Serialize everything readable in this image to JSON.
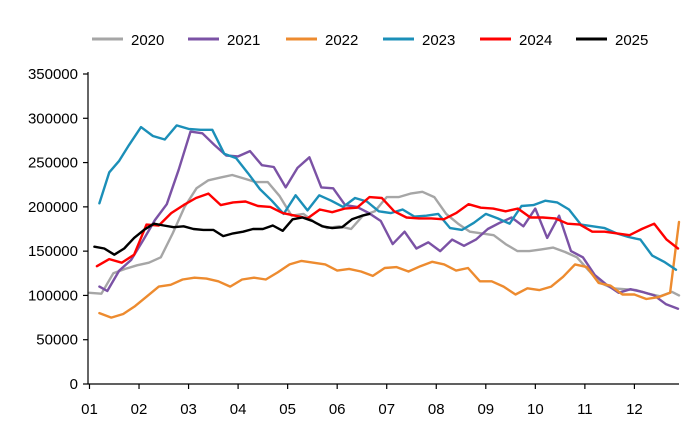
{
  "chart_data": {
    "type": "line",
    "title": "",
    "xlabel": "",
    "ylabel": "",
    "x_categories": [
      "01",
      "02",
      "03",
      "04",
      "05",
      "06",
      "07",
      "08",
      "09",
      "10",
      "11",
      "12"
    ],
    "x_range": [
      0.97,
      12.9
    ],
    "ylim": [
      0,
      350000
    ],
    "yticks": [
      0,
      50000,
      100000,
      150000,
      200000,
      250000,
      300000,
      350000
    ],
    "ytick_labels": [
      "0",
      "50000",
      "100000",
      "150000",
      "200000",
      "250000",
      "300000",
      "350000"
    ],
    "grid": false,
    "legend_position": "top",
    "series": [
      {
        "name": "2020",
        "color": "#a6a6a6",
        "x": [
          1.0,
          1.24,
          1.48,
          1.72,
          1.96,
          2.2,
          2.44,
          2.68,
          2.92,
          3.16,
          3.4,
          3.64,
          3.88,
          4.12,
          4.36,
          4.6,
          4.84,
          5.08,
          5.32,
          5.56,
          5.8,
          6.04,
          6.28,
          6.52,
          6.76,
          7.0,
          7.24,
          7.48,
          7.72,
          7.96,
          8.2,
          8.44,
          8.68,
          8.92,
          9.16,
          9.4,
          9.64,
          9.88,
          10.12,
          10.36,
          10.6,
          10.84,
          11.08,
          11.32,
          11.56,
          11.8,
          12.04,
          12.28,
          12.52,
          12.76,
          12.9
        ],
        "values": [
          103000,
          102000,
          125000,
          130000,
          134000,
          137000,
          143000,
          170000,
          200000,
          221000,
          230000,
          233000,
          236000,
          232000,
          228000,
          228000,
          212000,
          190000,
          192000,
          182000,
          176000,
          178000,
          175000,
          190000,
          195000,
          211000,
          211000,
          215000,
          217000,
          211000,
          192000,
          181000,
          172000,
          170000,
          168000,
          158000,
          150000,
          150000,
          152000,
          154000,
          149000,
          143000,
          128000,
          114000,
          108000,
          107000,
          106000,
          102000,
          99000,
          104000,
          100000
        ]
      },
      {
        "name": "2021",
        "color": "#7b52a5",
        "x": [
          1.2,
          1.36,
          1.6,
          1.84,
          2.08,
          2.32,
          2.56,
          2.8,
          3.04,
          3.28,
          3.52,
          3.76,
          4.0,
          4.24,
          4.48,
          4.72,
          4.96,
          5.2,
          5.44,
          5.68,
          5.92,
          6.16,
          6.4,
          6.64,
          6.88,
          7.12,
          7.36,
          7.6,
          7.84,
          8.08,
          8.32,
          8.56,
          8.8,
          9.04,
          9.28,
          9.52,
          9.76,
          10.0,
          10.24,
          10.48,
          10.72,
          10.96,
          11.2,
          11.44,
          11.68,
          11.92,
          12.16,
          12.4,
          12.64,
          12.88
        ],
        "values": [
          110000,
          105000,
          128000,
          140000,
          162000,
          185000,
          203000,
          242000,
          285000,
          283000,
          270000,
          258000,
          257000,
          263000,
          247000,
          245000,
          222000,
          244000,
          256000,
          222000,
          221000,
          202000,
          200000,
          193000,
          184000,
          158000,
          172000,
          153000,
          160000,
          150000,
          163000,
          156000,
          163000,
          175000,
          182000,
          188000,
          178000,
          198000,
          165000,
          190000,
          150000,
          143000,
          123000,
          112000,
          103000,
          107000,
          104000,
          100000,
          90000,
          85000
        ]
      },
      {
        "name": "2022",
        "color": "#ed8b2f",
        "x": [
          1.2,
          1.44,
          1.68,
          1.92,
          2.16,
          2.4,
          2.64,
          2.88,
          3.12,
          3.36,
          3.6,
          3.84,
          4.08,
          4.32,
          4.56,
          4.8,
          5.04,
          5.28,
          5.52,
          5.76,
          6.0,
          6.24,
          6.48,
          6.72,
          6.96,
          7.2,
          7.44,
          7.68,
          7.92,
          8.16,
          8.4,
          8.64,
          8.88,
          9.12,
          9.36,
          9.6,
          9.84,
          10.08,
          10.32,
          10.56,
          10.8,
          11.04,
          11.28,
          11.52,
          11.76,
          12.0,
          12.24,
          12.48,
          12.72,
          12.9
        ],
        "values": [
          80000,
          75000,
          79000,
          88000,
          99000,
          110000,
          112000,
          118000,
          120000,
          119000,
          116000,
          110000,
          118000,
          120000,
          118000,
          126000,
          135000,
          139000,
          137000,
          135000,
          128000,
          130000,
          127000,
          122000,
          131000,
          132000,
          127000,
          133000,
          138000,
          135000,
          128000,
          131000,
          116000,
          116000,
          110000,
          101000,
          108000,
          106000,
          110000,
          121000,
          135000,
          132000,
          114000,
          111000,
          101000,
          101000,
          96000,
          98000,
          103000,
          183000
        ]
      },
      {
        "name": "2023",
        "color": "#1b8fb8",
        "x": [
          1.2,
          1.4,
          1.6,
          1.8,
          2.04,
          2.28,
          2.52,
          2.76,
          3.0,
          3.24,
          3.48,
          3.72,
          3.96,
          4.2,
          4.44,
          4.68,
          4.92,
          5.16,
          5.4,
          5.64,
          5.88,
          6.12,
          6.36,
          6.6,
          6.84,
          7.08,
          7.32,
          7.56,
          7.8,
          8.04,
          8.28,
          8.52,
          8.76,
          9.0,
          9.24,
          9.48,
          9.72,
          9.96,
          10.2,
          10.44,
          10.68,
          10.92,
          11.16,
          11.4,
          11.64,
          11.88,
          12.12,
          12.36,
          12.6,
          12.84
        ],
        "values": [
          204000,
          239000,
          252000,
          270000,
          290000,
          280000,
          276000,
          292000,
          288000,
          287000,
          287000,
          260000,
          255000,
          238000,
          220000,
          207000,
          192000,
          213000,
          196000,
          213000,
          207000,
          200000,
          210000,
          206000,
          195000,
          193000,
          197000,
          189000,
          190000,
          192000,
          176000,
          174000,
          182000,
          192000,
          187000,
          181000,
          201000,
          202000,
          207000,
          205000,
          197000,
          180000,
          178000,
          176000,
          170000,
          166000,
          163000,
          145000,
          138000,
          129000
        ]
      },
      {
        "name": "2024",
        "color": "#ff0000",
        "x": [
          1.15,
          1.4,
          1.65,
          1.9,
          2.15,
          2.4,
          2.65,
          2.9,
          3.15,
          3.4,
          3.65,
          3.9,
          4.15,
          4.4,
          4.65,
          4.9,
          5.15,
          5.4,
          5.65,
          5.9,
          6.15,
          6.4,
          6.65,
          6.9,
          7.15,
          7.4,
          7.65,
          7.9,
          8.15,
          8.4,
          8.65,
          8.9,
          9.15,
          9.4,
          9.65,
          9.9,
          10.15,
          10.4,
          10.65,
          10.9,
          11.15,
          11.4,
          11.65,
          11.9,
          12.15,
          12.4,
          12.65,
          12.88
        ],
        "values": [
          133000,
          141000,
          137000,
          146000,
          180000,
          179000,
          193000,
          202000,
          210000,
          215000,
          202000,
          205000,
          206000,
          201000,
          200000,
          193000,
          190000,
          187000,
          197000,
          194000,
          198000,
          199000,
          211000,
          210000,
          195000,
          188000,
          187000,
          187000,
          186000,
          193000,
          203000,
          199000,
          198000,
          195000,
          198000,
          188000,
          188000,
          187000,
          181000,
          180000,
          172000,
          172000,
          170000,
          168000,
          175000,
          181000,
          163000,
          153000
        ]
      },
      {
        "name": "2025",
        "color": "#000000",
        "x": [
          1.1,
          1.3,
          1.5,
          1.7,
          1.9,
          2.1,
          2.3,
          2.5,
          2.7,
          2.9,
          3.1,
          3.3,
          3.5,
          3.7,
          3.9,
          4.1,
          4.3,
          4.5,
          4.7,
          4.9,
          5.1,
          5.3,
          5.5,
          5.7,
          5.9,
          6.1,
          6.3,
          6.5,
          6.65
        ],
        "values": [
          155000,
          153000,
          146000,
          153000,
          165000,
          174000,
          181000,
          179000,
          177000,
          178000,
          175000,
          174000,
          174000,
          167000,
          170000,
          172000,
          175000,
          175000,
          179000,
          173000,
          186000,
          188000,
          184000,
          178000,
          176000,
          177000,
          186000,
          190000,
          192000
        ]
      }
    ]
  }
}
